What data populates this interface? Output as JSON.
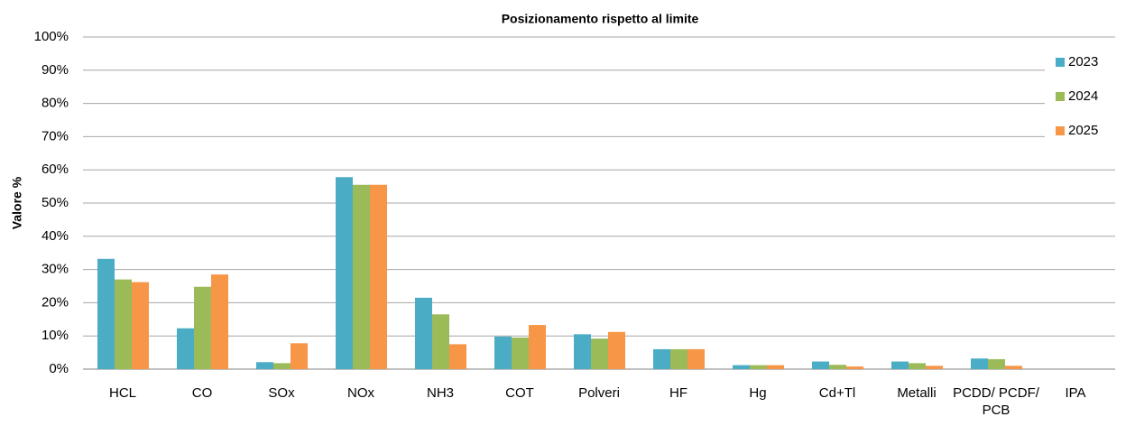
{
  "chart_data": {
    "type": "bar",
    "title": "Posizionamento rispetto al limite",
    "y_label": "Valore %",
    "categories": [
      "HCL",
      "CO",
      "SOx",
      "NOx",
      "NH3",
      "COT",
      "Polveri",
      "HF",
      "Hg",
      "Cd+Tl",
      "Metalli",
      "PCDD/ PCDF/ PCB",
      "IPA"
    ],
    "series": [
      {
        "name": "2023",
        "color": "#4bacc6",
        "values": [
          33.2,
          12.3,
          2.1,
          57.8,
          21.5,
          9.8,
          10.5,
          6,
          1.2,
          2.3,
          2.3,
          3.2,
          0
        ]
      },
      {
        "name": "2024",
        "color": "#9bbb59",
        "values": [
          27,
          24.8,
          1.8,
          55.5,
          16.5,
          9.5,
          9.2,
          6,
          1.2,
          1.3,
          1.8,
          3,
          0
        ]
      },
      {
        "name": "2025",
        "color": "#f79646",
        "values": [
          26.2,
          28.5,
          7.8,
          55.5,
          7.5,
          13.3,
          11.2,
          6,
          1.2,
          0.8,
          1,
          1,
          0
        ]
      }
    ],
    "ylim": [
      0,
      100
    ],
    "yticks": [
      {
        "value": 0,
        "label": "0%"
      },
      {
        "value": 10,
        "label": "10%"
      },
      {
        "value": 20,
        "label": "20%"
      },
      {
        "value": 30,
        "label": "30%"
      },
      {
        "value": 40,
        "label": "40%"
      },
      {
        "value": 50,
        "label": "50%"
      },
      {
        "value": 60,
        "label": "60%"
      },
      {
        "value": 70,
        "label": "70%"
      },
      {
        "value": 80,
        "label": "80%"
      },
      {
        "value": 90,
        "label": "90%"
      },
      {
        "value": 100,
        "label": "100%"
      }
    ],
    "grid": true,
    "legend": "right"
  }
}
